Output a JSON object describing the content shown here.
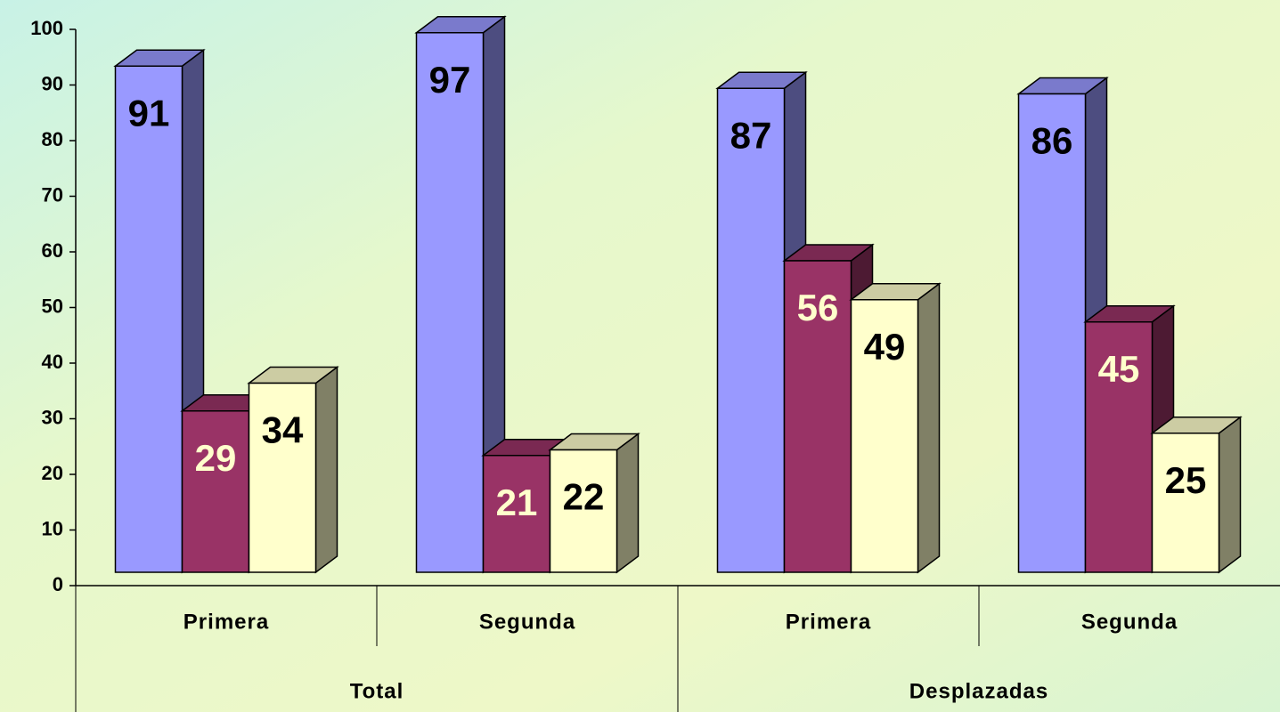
{
  "chart_data": {
    "type": "bar3d",
    "categories": [
      "Primera",
      "Segunda",
      "Primera",
      "Segunda"
    ],
    "groups": [
      "Total",
      "Desplazadas"
    ],
    "series": [
      {
        "color": "#9999ff",
        "label_color": "#000000",
        "values": [
          91,
          97,
          87,
          86
        ]
      },
      {
        "color": "#993366",
        "label_color": "#ffffcc",
        "values": [
          29,
          21,
          56,
          45
        ]
      },
      {
        "color": "#ffffcc",
        "label_color": "#000000",
        "values": [
          34,
          22,
          49,
          25
        ]
      }
    ],
    "ylim": [
      0,
      100
    ],
    "yticks": [
      0,
      10,
      20,
      30,
      40,
      50,
      60,
      70,
      80,
      90,
      100
    ]
  }
}
